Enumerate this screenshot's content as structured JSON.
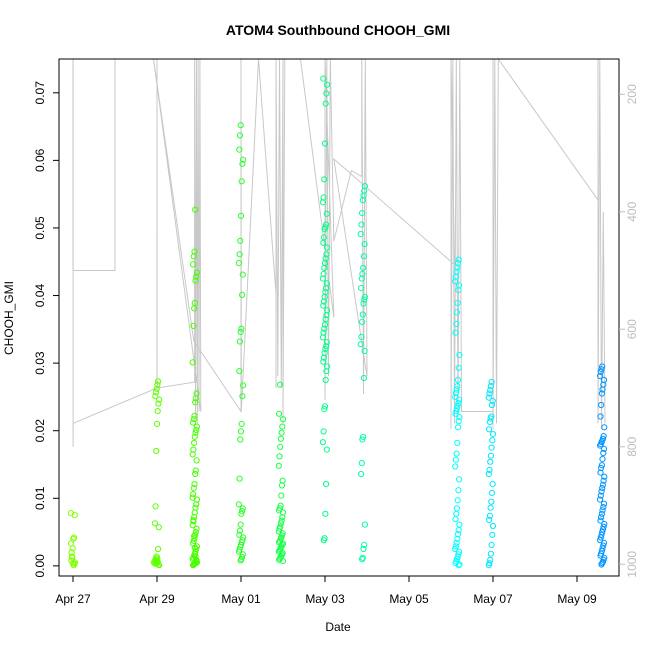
{
  "chart_data": {
    "type": "scatter",
    "title": "ATOM4 Southbound CHOOH_GMI",
    "xlabel": "Date",
    "ylabel": "CHOOH_GMI",
    "x_ticks": [
      "Apr 27",
      "Apr 29",
      "May 01",
      "May 03",
      "May 05",
      "May 07",
      "May 09"
    ],
    "y_ticks": [
      "0.00",
      "0.01",
      "0.02",
      "0.03",
      "0.04",
      "0.05",
      "0.06",
      "0.07"
    ],
    "y2_ticks": [
      "200",
      "400",
      "600",
      "800",
      "1000"
    ],
    "xlim": [
      "2016-04-26T16:00",
      "2016-05-10T00:00"
    ],
    "ylim": [
      -0.0015,
      0.075
    ],
    "y2lim": [
      1020,
      140
    ],
    "y2_reversed": true,
    "grid": false,
    "point_color_note": "colored by day from green to blue",
    "colors": {
      "gray_line": "#c8c8c8",
      "right_axis": "#bdbdbd"
    },
    "groups": [
      {
        "date": "2016-04-27",
        "center": 0.0,
        "color": "#80ff00",
        "values": [
          0.0078,
          0.0075,
          0.0042,
          0.004,
          0.0026,
          0.0014,
          0.0008,
          0.0005,
          0.0003,
          0.0001,
          0.0004,
          0.0012,
          0.002,
          0.0033
        ]
      },
      {
        "date": "2016-04-28",
        "center": 0.95,
        "color": "#78ff00",
        "values": [
          0.0014,
          0.0012,
          0.0009,
          0.0007,
          0.0005
        ]
      },
      {
        "date": "2016-04-29",
        "center": 0.0,
        "color": "#5cff00",
        "values": [
          0.0273,
          0.0268,
          0.0262,
          0.0257,
          0.0251,
          0.0246,
          0.024,
          0.0229,
          0.021,
          0.017,
          0.0088,
          0.0063,
          0.0057,
          0.0025,
          0.0011,
          0.0008,
          0.0005,
          0.0003,
          0.0001,
          0.0002,
          0.0006,
          0.0004
        ]
      },
      {
        "date": "2016-04-30",
        "center": -0.1,
        "color": "#44ff00",
        "values": [
          0.0527,
          0.0465,
          0.0458,
          0.0446,
          0.0434,
          0.0428,
          0.0422,
          0.0389,
          0.0381,
          0.0355,
          0.0301,
          0.0255,
          0.0248,
          0.0242,
          0.0222,
          0.0217,
          0.0212,
          0.0206,
          0.0201,
          0.0197,
          0.0191,
          0.0182,
          0.0172,
          0.0165,
          0.0156,
          0.0141,
          0.0136,
          0.0121,
          0.0115,
          0.0106,
          0.0098,
          0.0091,
          0.0086,
          0.0079,
          0.0072,
          0.0066,
          0.006,
          0.0055,
          0.005,
          0.0046,
          0.0041,
          0.0037,
          0.0033,
          0.0029,
          0.0025,
          0.0021,
          0.0018,
          0.0015,
          0.0012,
          0.001,
          0.0008,
          0.0006,
          0.0004,
          0.0003,
          0.0002,
          0.0001,
          0.0005,
          0.0009,
          0.0014,
          0.0027,
          0.0044,
          0.0068,
          0.0101
        ]
      },
      {
        "date": "2016-05-01",
        "center": 0.0,
        "color": "#2cff2c",
        "values": [
          0.0652,
          0.0637,
          0.0616,
          0.0601,
          0.0595,
          0.0569,
          0.0518,
          0.0481,
          0.0461,
          0.0448,
          0.0431,
          0.0401,
          0.0351,
          0.0346,
          0.0332,
          0.0288,
          0.0267,
          0.0251,
          0.021,
          0.0199,
          0.0187,
          0.0129,
          0.0091,
          0.0085,
          0.0081,
          0.0077,
          0.0061,
          0.0052,
          0.0046,
          0.0042,
          0.0038,
          0.0035,
          0.0031,
          0.0028,
          0.0024,
          0.0021,
          0.0017,
          0.0013,
          0.001,
          0.0008
        ]
      },
      {
        "date": "2016-05-02",
        "center": -0.05,
        "color": "#1aff48",
        "values": [
          0.0268,
          0.0225,
          0.0217,
          0.0206,
          0.0197,
          0.0188,
          0.0176,
          0.0162,
          0.0148,
          0.0126,
          0.0119,
          0.0104,
          0.0089,
          0.0085,
          0.0082,
          0.0079,
          0.0072,
          0.0067,
          0.0063,
          0.0058,
          0.0055,
          0.0051,
          0.0048,
          0.0045,
          0.0042,
          0.004,
          0.0037,
          0.0035,
          0.0033,
          0.0031,
          0.0029,
          0.0027,
          0.0025,
          0.0023,
          0.0021,
          0.0019,
          0.0017,
          0.0015,
          0.0013,
          0.0011,
          0.0009,
          0.0007
        ]
      },
      {
        "date": "2016-05-03",
        "center": 0.0,
        "color": "#00ff88",
        "values": [
          0.0721,
          0.0712,
          0.0699,
          0.0684,
          0.0625,
          0.0572,
          0.0545,
          0.0538,
          0.0521,
          0.0505,
          0.0501,
          0.0498,
          0.0486,
          0.0478,
          0.0471,
          0.0461,
          0.0455,
          0.0448,
          0.0441,
          0.0432,
          0.0425,
          0.0418,
          0.0411,
          0.0405,
          0.0398,
          0.0391,
          0.0385,
          0.0378,
          0.0371,
          0.0365,
          0.0357,
          0.0351,
          0.0345,
          0.0338,
          0.0331,
          0.0325,
          0.0321,
          0.0315,
          0.0308,
          0.0302,
          0.0295,
          0.0288,
          0.0275,
          0.0236,
          0.0232,
          0.0199,
          0.0183,
          0.0172,
          0.0121,
          0.0077,
          0.0041,
          0.0038
        ]
      },
      {
        "date": "2016-05-04",
        "center": -0.1,
        "color": "#00ffa0",
        "values": [
          0.0562,
          0.0555,
          0.0548,
          0.0541,
          0.0522,
          0.0505,
          0.0491,
          0.0476,
          0.0458,
          0.0441,
          0.0432,
          0.0425,
          0.0411,
          0.0398,
          0.0394,
          0.0388,
          0.0372,
          0.0361,
          0.0339,
          0.0328,
          0.0318,
          0.0278,
          0.0191,
          0.0187,
          0.0152,
          0.0136,
          0.0061,
          0.0031,
          0.0025,
          0.0012,
          0.001
        ]
      },
      {
        "date": "2016-05-06",
        "center": 0.15,
        "color": "#00ffff",
        "values": [
          0.0453,
          0.0448,
          0.0441,
          0.0435,
          0.0428,
          0.0421,
          0.0415,
          0.0408,
          0.0389,
          0.0375,
          0.0358,
          0.0345,
          0.0312,
          0.0293,
          0.0275,
          0.0266,
          0.0261,
          0.0256,
          0.025,
          0.0246,
          0.0241,
          0.0237,
          0.0233,
          0.0229,
          0.0225,
          0.022,
          0.0214,
          0.0205,
          0.0182,
          0.0166,
          0.0157,
          0.0147,
          0.0128,
          0.0112,
          0.0097,
          0.0085,
          0.0077,
          0.0069,
          0.0061,
          0.0053,
          0.0047,
          0.004,
          0.0034,
          0.0029,
          0.0025,
          0.0021,
          0.0017,
          0.0013,
          0.001,
          0.0007,
          0.0004,
          0.0002,
          0.0001
        ]
      },
      {
        "date": "2016-05-07",
        "center": -0.05,
        "color": "#00e8ff",
        "values": [
          0.0272,
          0.0266,
          0.026,
          0.0255,
          0.0249,
          0.0244,
          0.0238,
          0.0221,
          0.0218,
          0.0213,
          0.0202,
          0.0195,
          0.0186,
          0.0175,
          0.0163,
          0.0154,
          0.0142,
          0.0136,
          0.0121,
          0.0108,
          0.0095,
          0.0086,
          0.0074,
          0.0068,
          0.0059,
          0.0046,
          0.0031,
          0.0018,
          0.0009,
          0.0004,
          0.0001
        ]
      },
      {
        "date": "2016-05-09",
        "center": 0.6,
        "color": "#0096ff",
        "values": [
          0.0295,
          0.0291,
          0.0287,
          0.0281,
          0.0275,
          0.0268,
          0.0261,
          0.0255,
          0.0238,
          0.0221,
          0.0205,
          0.0192,
          0.0188,
          0.0185,
          0.0183,
          0.018,
          0.0178,
          0.0173,
          0.0167,
          0.0158,
          0.0149,
          0.0145,
          0.0138,
          0.0132,
          0.0126,
          0.012,
          0.0115,
          0.011,
          0.0104,
          0.0098,
          0.0092,
          0.0087,
          0.0082,
          0.0077,
          0.0072,
          0.0067,
          0.0062,
          0.0058,
          0.0054,
          0.005,
          0.0046,
          0.0042,
          0.0038,
          0.0034,
          0.003,
          0.0026,
          0.0022,
          0.0018,
          0.0015,
          0.0012,
          0.0009,
          0.0006,
          0.0004,
          0.0002
        ]
      }
    ],
    "secondary_series": {
      "description": "aircraft pressure profile (gray vertical line traces)",
      "axis": "right",
      "points": [
        [
          "2016-04-27T00:00",
          140
        ],
        [
          "2016-04-27T00:00",
          500
        ],
        [
          "2016-04-28T00:00",
          500
        ],
        [
          "2016-04-28T00:00",
          140
        ],
        [
          "2016-04-27T00:05",
          140
        ],
        [
          "2016-04-27T00:05",
          800
        ],
        [
          "2016-04-27T00:08",
          760
        ],
        [
          "2016-04-29T00:00",
          700
        ],
        [
          "2016-04-29T00:00",
          140
        ],
        [
          "2016-04-29T00:02",
          700
        ],
        [
          "2016-04-29T21:30",
          690
        ],
        [
          "2016-04-29T21:30",
          140
        ],
        [
          "2016-04-29T22:00",
          750
        ],
        [
          "2016-04-29T22:30",
          140
        ],
        [
          "2016-04-29T23:00",
          760
        ],
        [
          "2016-04-29T23:30",
          140
        ],
        [
          "2016-04-30T00:00",
          740
        ],
        [
          "2016-04-30T00:30",
          140
        ],
        [
          "2016-04-30T01:00",
          740
        ],
        [
          "2016-04-28T22:00",
          140
        ],
        [
          "2016-04-29T21:00",
          620
        ],
        [
          "2016-05-01T00:00",
          740
        ],
        [
          "2016-05-01T00:00",
          140
        ],
        [
          "2016-05-01T00:10",
          740
        ],
        [
          "2016-05-01T10:00",
          140
        ],
        [
          "2016-05-01T20:00",
          540
        ],
        [
          "2016-05-01T20:00",
          700
        ],
        [
          "2016-05-01T20:00",
          140
        ],
        [
          "2016-05-01T21:00",
          680
        ],
        [
          "2016-05-01T22:00",
          140
        ],
        [
          "2016-05-01T23:00",
          700
        ],
        [
          "2016-05-02T00:00",
          140
        ],
        [
          "2016-05-02T00:00",
          760
        ],
        [
          "2016-05-02T01:00",
          140
        ],
        [
          "2016-05-02T10:00",
          140
        ],
        [
          "2016-05-03T05:00",
          580
        ],
        [
          "2016-05-03T00:00",
          140
        ],
        [
          "2016-05-03T00:00",
          720
        ],
        [
          "2016-05-03T01:00",
          140
        ],
        [
          "2016-05-03T02:00",
          680
        ],
        [
          "2016-05-03T03:00",
          140
        ],
        [
          "2016-05-03T05:00",
          450
        ],
        [
          "2016-05-03T15:00",
          330
        ],
        [
          "2016-05-03T21:00",
          340
        ],
        [
          "2016-05-03T21:00",
          140
        ],
        [
          "2016-05-03T22:00",
          710
        ],
        [
          "2016-05-03T23:00",
          140
        ],
        [
          "2016-05-04T00:00",
          680
        ],
        [
          "2016-05-03T05:00",
          310
        ],
        [
          "2016-05-06T02:00",
          490
        ],
        [
          "2016-05-06T00:00",
          140
        ],
        [
          "2016-05-06T00:00",
          770
        ],
        [
          "2016-05-06T01:00",
          140
        ],
        [
          "2016-05-06T02:00",
          760
        ],
        [
          "2016-05-06T03:00",
          140
        ],
        [
          "2016-05-06T04:00",
          750
        ],
        [
          "2016-05-06T05:00",
          140
        ],
        [
          "2016-05-06T06:00",
          730
        ],
        [
          "2016-05-06T06:00",
          740
        ],
        [
          "2016-05-07T00:00",
          740
        ],
        [
          "2016-05-07T00:00",
          140
        ],
        [
          "2016-05-07T00:00",
          770
        ],
        [
          "2016-05-07T01:00",
          140
        ],
        [
          "2016-05-07T02:00",
          760
        ],
        [
          "2016-05-07T03:00",
          140
        ],
        [
          "2016-05-07T03:00",
          140
        ],
        [
          "2016-05-09T12:00",
          380
        ],
        [
          "2016-05-09T12:00",
          140
        ],
        [
          "2016-05-09T12:00",
          760
        ],
        [
          "2016-05-09T13:00",
          140
        ],
        [
          "2016-05-09T14:00",
          770
        ],
        [
          "2016-05-09T15:00",
          400
        ],
        [
          "2016-05-09T16:00",
          760
        ]
      ]
    }
  }
}
